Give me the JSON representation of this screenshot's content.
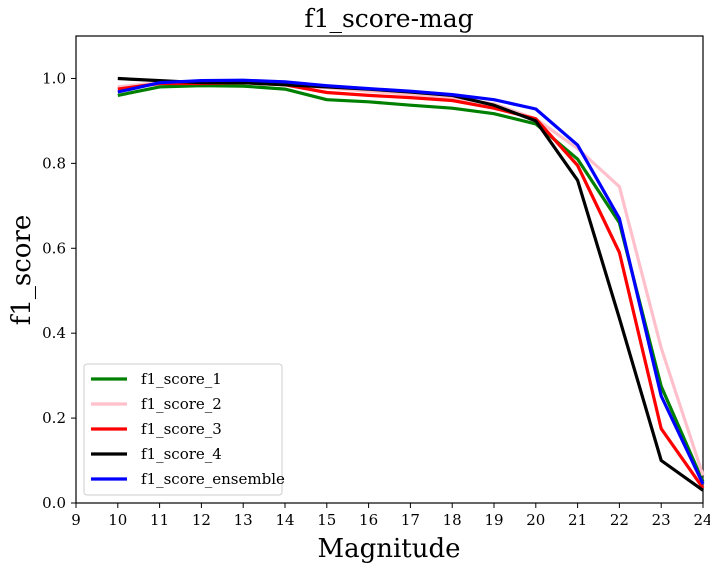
{
  "chart_data": {
    "type": "line",
    "title": "f1_score-mag",
    "xlabel": "Magnitude",
    "ylabel": "f1_score",
    "xlim": [
      9,
      24
    ],
    "ylim": [
      0.0,
      1.1
    ],
    "xticks": [
      "9",
      "10",
      "11",
      "12",
      "13",
      "14",
      "15",
      "16",
      "17",
      "18",
      "19",
      "20",
      "21",
      "22",
      "23",
      "24"
    ],
    "yticks": [
      "0.0",
      "0.2",
      "0.4",
      "0.6",
      "0.8",
      "1.0"
    ],
    "grid": false,
    "legend_position": "lower-left",
    "x": [
      10,
      11,
      12,
      13,
      14,
      15,
      16,
      17,
      18,
      19,
      20,
      21,
      22,
      23,
      24
    ],
    "series": [
      {
        "name": "f1_score_1",
        "color": "#008000",
        "values": [
          0.96,
          0.98,
          0.983,
          0.982,
          0.975,
          0.95,
          0.945,
          0.937,
          0.93,
          0.917,
          0.893,
          0.81,
          0.66,
          0.275,
          0.05
        ]
      },
      {
        "name": "f1_score_2",
        "color": "#ffc0cb",
        "values": [
          0.98,
          0.99,
          0.99,
          0.99,
          0.985,
          0.978,
          0.97,
          0.963,
          0.955,
          0.94,
          0.905,
          0.835,
          0.745,
          0.365,
          0.065
        ]
      },
      {
        "name": "f1_score_3",
        "color": "#ff0000",
        "values": [
          0.975,
          0.988,
          0.988,
          0.99,
          0.985,
          0.967,
          0.96,
          0.955,
          0.948,
          0.93,
          0.905,
          0.795,
          0.59,
          0.175,
          0.035
        ]
      },
      {
        "name": "f1_score_4",
        "color": "#000000",
        "values": [
          1.0,
          0.995,
          0.99,
          0.99,
          0.985,
          0.98,
          0.975,
          0.968,
          0.96,
          0.937,
          0.9,
          0.76,
          0.435,
          0.1,
          0.03
        ]
      },
      {
        "name": "f1_score_ensemble",
        "color": "#0000ff",
        "values": [
          0.968,
          0.99,
          0.995,
          0.996,
          0.992,
          0.983,
          0.976,
          0.97,
          0.962,
          0.95,
          0.928,
          0.843,
          0.67,
          0.252,
          0.045
        ]
      }
    ]
  }
}
